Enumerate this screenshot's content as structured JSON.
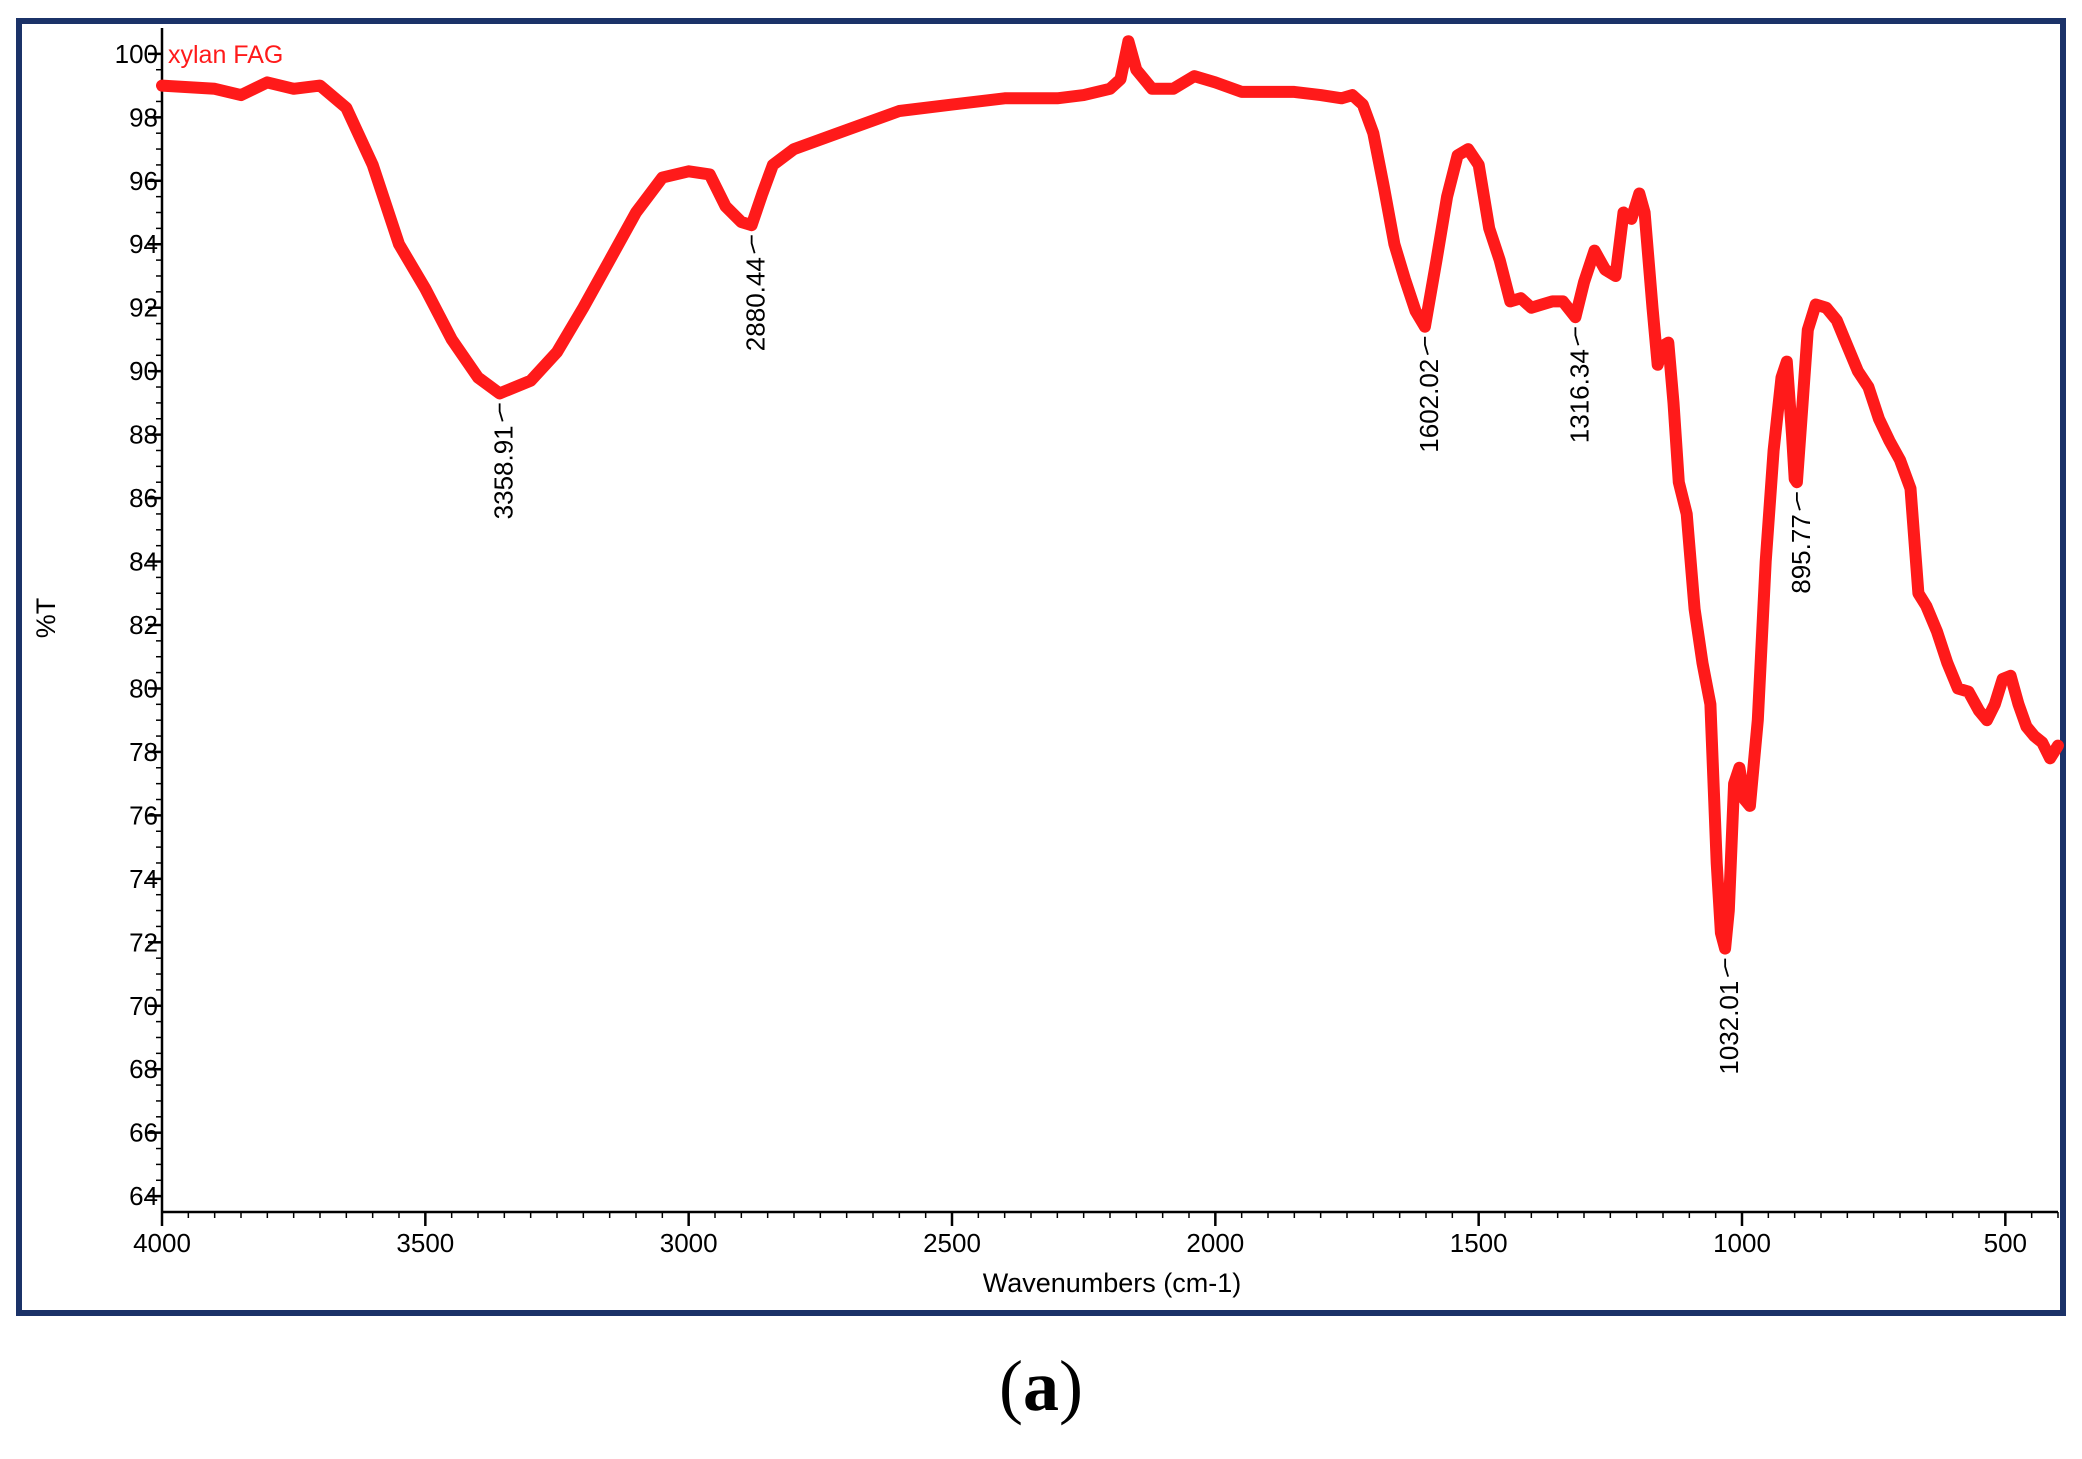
{
  "figure": {
    "panel_label_open": "(",
    "panel_label": "a",
    "panel_label_close": ")"
  },
  "colors": {
    "frame": "#1b3268",
    "series": "#ff1a1a",
    "axis": "#000000"
  },
  "chart_data": {
    "type": "line",
    "xlabel": "Wavenumbers (cm-1)",
    "ylabel": "%T",
    "xlim": [
      4000,
      400
    ],
    "ylim": [
      63.5,
      100.5
    ],
    "x_reversed": true,
    "x_ticks": [
      4000,
      3500,
      3000,
      2500,
      2000,
      1500,
      1000,
      500
    ],
    "y_ticks": [
      64,
      66,
      68,
      70,
      72,
      74,
      76,
      78,
      80,
      82,
      84,
      86,
      88,
      90,
      92,
      94,
      96,
      98,
      100
    ],
    "grid": false,
    "legend": "top-left",
    "series": [
      {
        "name": "xylan FAG",
        "color": "#ff1a1a",
        "points": [
          [
            4000,
            99.0
          ],
          [
            3900,
            98.9
          ],
          [
            3850,
            98.7
          ],
          [
            3800,
            99.1
          ],
          [
            3750,
            98.9
          ],
          [
            3700,
            99.0
          ],
          [
            3650,
            98.3
          ],
          [
            3600,
            96.5
          ],
          [
            3550,
            94.0
          ],
          [
            3500,
            92.6
          ],
          [
            3450,
            91.0
          ],
          [
            3400,
            89.8
          ],
          [
            3358.91,
            89.3
          ],
          [
            3300,
            89.7
          ],
          [
            3250,
            90.6
          ],
          [
            3200,
            92.0
          ],
          [
            3150,
            93.5
          ],
          [
            3100,
            95.0
          ],
          [
            3050,
            96.1
          ],
          [
            3000,
            96.3
          ],
          [
            2960,
            96.2
          ],
          [
            2930,
            95.2
          ],
          [
            2900,
            94.7
          ],
          [
            2880.44,
            94.6
          ],
          [
            2860,
            95.6
          ],
          [
            2840,
            96.5
          ],
          [
            2800,
            97.0
          ],
          [
            2700,
            97.6
          ],
          [
            2600,
            98.2
          ],
          [
            2500,
            98.4
          ],
          [
            2400,
            98.6
          ],
          [
            2300,
            98.6
          ],
          [
            2250,
            98.7
          ],
          [
            2200,
            98.9
          ],
          [
            2180,
            99.2
          ],
          [
            2165,
            100.4
          ],
          [
            2150,
            99.5
          ],
          [
            2120,
            98.9
          ],
          [
            2080,
            98.9
          ],
          [
            2040,
            99.3
          ],
          [
            2000,
            99.1
          ],
          [
            1950,
            98.8
          ],
          [
            1900,
            98.8
          ],
          [
            1850,
            98.8
          ],
          [
            1800,
            98.7
          ],
          [
            1760,
            98.6
          ],
          [
            1740,
            98.7
          ],
          [
            1720,
            98.4
          ],
          [
            1700,
            97.5
          ],
          [
            1680,
            95.8
          ],
          [
            1660,
            94.0
          ],
          [
            1640,
            92.9
          ],
          [
            1620,
            91.9
          ],
          [
            1602.02,
            91.4
          ],
          [
            1580,
            93.5
          ],
          [
            1560,
            95.5
          ],
          [
            1540,
            96.8
          ],
          [
            1520,
            97.0
          ],
          [
            1500,
            96.5
          ],
          [
            1480,
            94.5
          ],
          [
            1460,
            93.5
          ],
          [
            1440,
            92.2
          ],
          [
            1420,
            92.3
          ],
          [
            1400,
            92.0
          ],
          [
            1380,
            92.1
          ],
          [
            1360,
            92.2
          ],
          [
            1340,
            92.2
          ],
          [
            1316.34,
            91.7
          ],
          [
            1300,
            92.8
          ],
          [
            1280,
            93.8
          ],
          [
            1260,
            93.2
          ],
          [
            1240,
            93.0
          ],
          [
            1225,
            95.0
          ],
          [
            1210,
            94.8
          ],
          [
            1195,
            95.6
          ],
          [
            1185,
            95.0
          ],
          [
            1170,
            92.0
          ],
          [
            1160,
            90.2
          ],
          [
            1150,
            90.8
          ],
          [
            1140,
            90.9
          ],
          [
            1130,
            89.0
          ],
          [
            1120,
            86.5
          ],
          [
            1105,
            85.5
          ],
          [
            1090,
            82.5
          ],
          [
            1075,
            80.8
          ],
          [
            1060,
            79.5
          ],
          [
            1048,
            74.5
          ],
          [
            1040,
            72.3
          ],
          [
            1032.01,
            71.8
          ],
          [
            1025,
            73.0
          ],
          [
            1015,
            77.0
          ],
          [
            1005,
            77.5
          ],
          [
            995,
            76.5
          ],
          [
            985,
            76.3
          ],
          [
            970,
            79.0
          ],
          [
            955,
            84.0
          ],
          [
            940,
            87.5
          ],
          [
            925,
            89.8
          ],
          [
            915,
            90.3
          ],
          [
            905,
            88.0
          ],
          [
            900,
            86.6
          ],
          [
            895.77,
            86.5
          ],
          [
            885,
            89.0
          ],
          [
            875,
            91.3
          ],
          [
            860,
            92.1
          ],
          [
            840,
            92.0
          ],
          [
            820,
            91.6
          ],
          [
            800,
            90.8
          ],
          [
            780,
            90.0
          ],
          [
            760,
            89.5
          ],
          [
            740,
            88.5
          ],
          [
            720,
            87.8
          ],
          [
            700,
            87.2
          ],
          [
            680,
            86.3
          ],
          [
            665,
            83.0
          ],
          [
            650,
            82.6
          ],
          [
            630,
            81.8
          ],
          [
            610,
            80.8
          ],
          [
            590,
            80.0
          ],
          [
            570,
            79.9
          ],
          [
            550,
            79.3
          ],
          [
            535,
            79.0
          ],
          [
            520,
            79.5
          ],
          [
            505,
            80.3
          ],
          [
            490,
            80.4
          ],
          [
            475,
            79.5
          ],
          [
            460,
            78.8
          ],
          [
            445,
            78.5
          ],
          [
            430,
            78.3
          ],
          [
            415,
            77.8
          ],
          [
            400,
            78.2
          ]
        ]
      }
    ],
    "annotations": [
      {
        "label": "3358.91",
        "x": 3358.91,
        "y": 89.3
      },
      {
        "label": "2880.44",
        "x": 2880.44,
        "y": 94.6
      },
      {
        "label": "1602.02",
        "x": 1602.02,
        "y": 91.4
      },
      {
        "label": "1316.34",
        "x": 1316.34,
        "y": 91.7
      },
      {
        "label": "1032.01",
        "x": 1032.01,
        "y": 71.8
      },
      {
        "label": "895.77",
        "x": 895.77,
        "y": 86.5
      }
    ]
  }
}
